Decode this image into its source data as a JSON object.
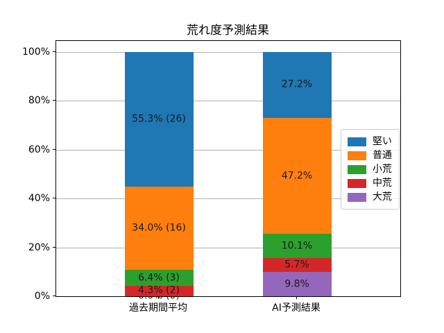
{
  "chart_data": {
    "type": "bar",
    "subtype": "stacked-percentage",
    "title": "荒れ度予測結果",
    "categories": [
      "過去期間平均",
      "AI予測結果"
    ],
    "series": [
      {
        "name": "堅い",
        "color": "#1f77b4",
        "values": [
          55.3,
          27.2
        ],
        "labels": [
          "55.3% (26)",
          "27.2%"
        ]
      },
      {
        "name": "普通",
        "color": "#ff7f0e",
        "values": [
          34.0,
          47.2
        ],
        "labels": [
          "34.0% (16)",
          "47.2%"
        ]
      },
      {
        "name": "小荒",
        "color": "#2ca02c",
        "values": [
          6.4,
          10.1
        ],
        "labels": [
          "6.4% (3)",
          "10.1%"
        ]
      },
      {
        "name": "中荒",
        "color": "#d62728",
        "values": [
          4.3,
          5.7
        ],
        "labels": [
          "4.3% (2)",
          "5.7%"
        ]
      },
      {
        "name": "大荒",
        "color": "#9467bd",
        "values": [
          0.0,
          9.8
        ],
        "labels": [
          "0.0% (0)",
          "9.8%"
        ]
      }
    ],
    "stack_order_bottom_to_top": [
      "大荒",
      "中荒",
      "小荒",
      "普通",
      "堅い"
    ],
    "y_ticks": [
      {
        "value": 0,
        "label": "0%"
      },
      {
        "value": 20,
        "label": "20%"
      },
      {
        "value": 40,
        "label": "40%"
      },
      {
        "value": 60,
        "label": "60%"
      },
      {
        "value": 80,
        "label": "80%"
      },
      {
        "value": 100,
        "label": "100%"
      }
    ],
    "ylim": [
      0,
      100
    ],
    "grid": true,
    "gridline_color": "#b0b0b0",
    "legend_position": "right",
    "legend_entries": [
      "堅い",
      "普通",
      "小荒",
      "中荒",
      "大荒"
    ]
  }
}
